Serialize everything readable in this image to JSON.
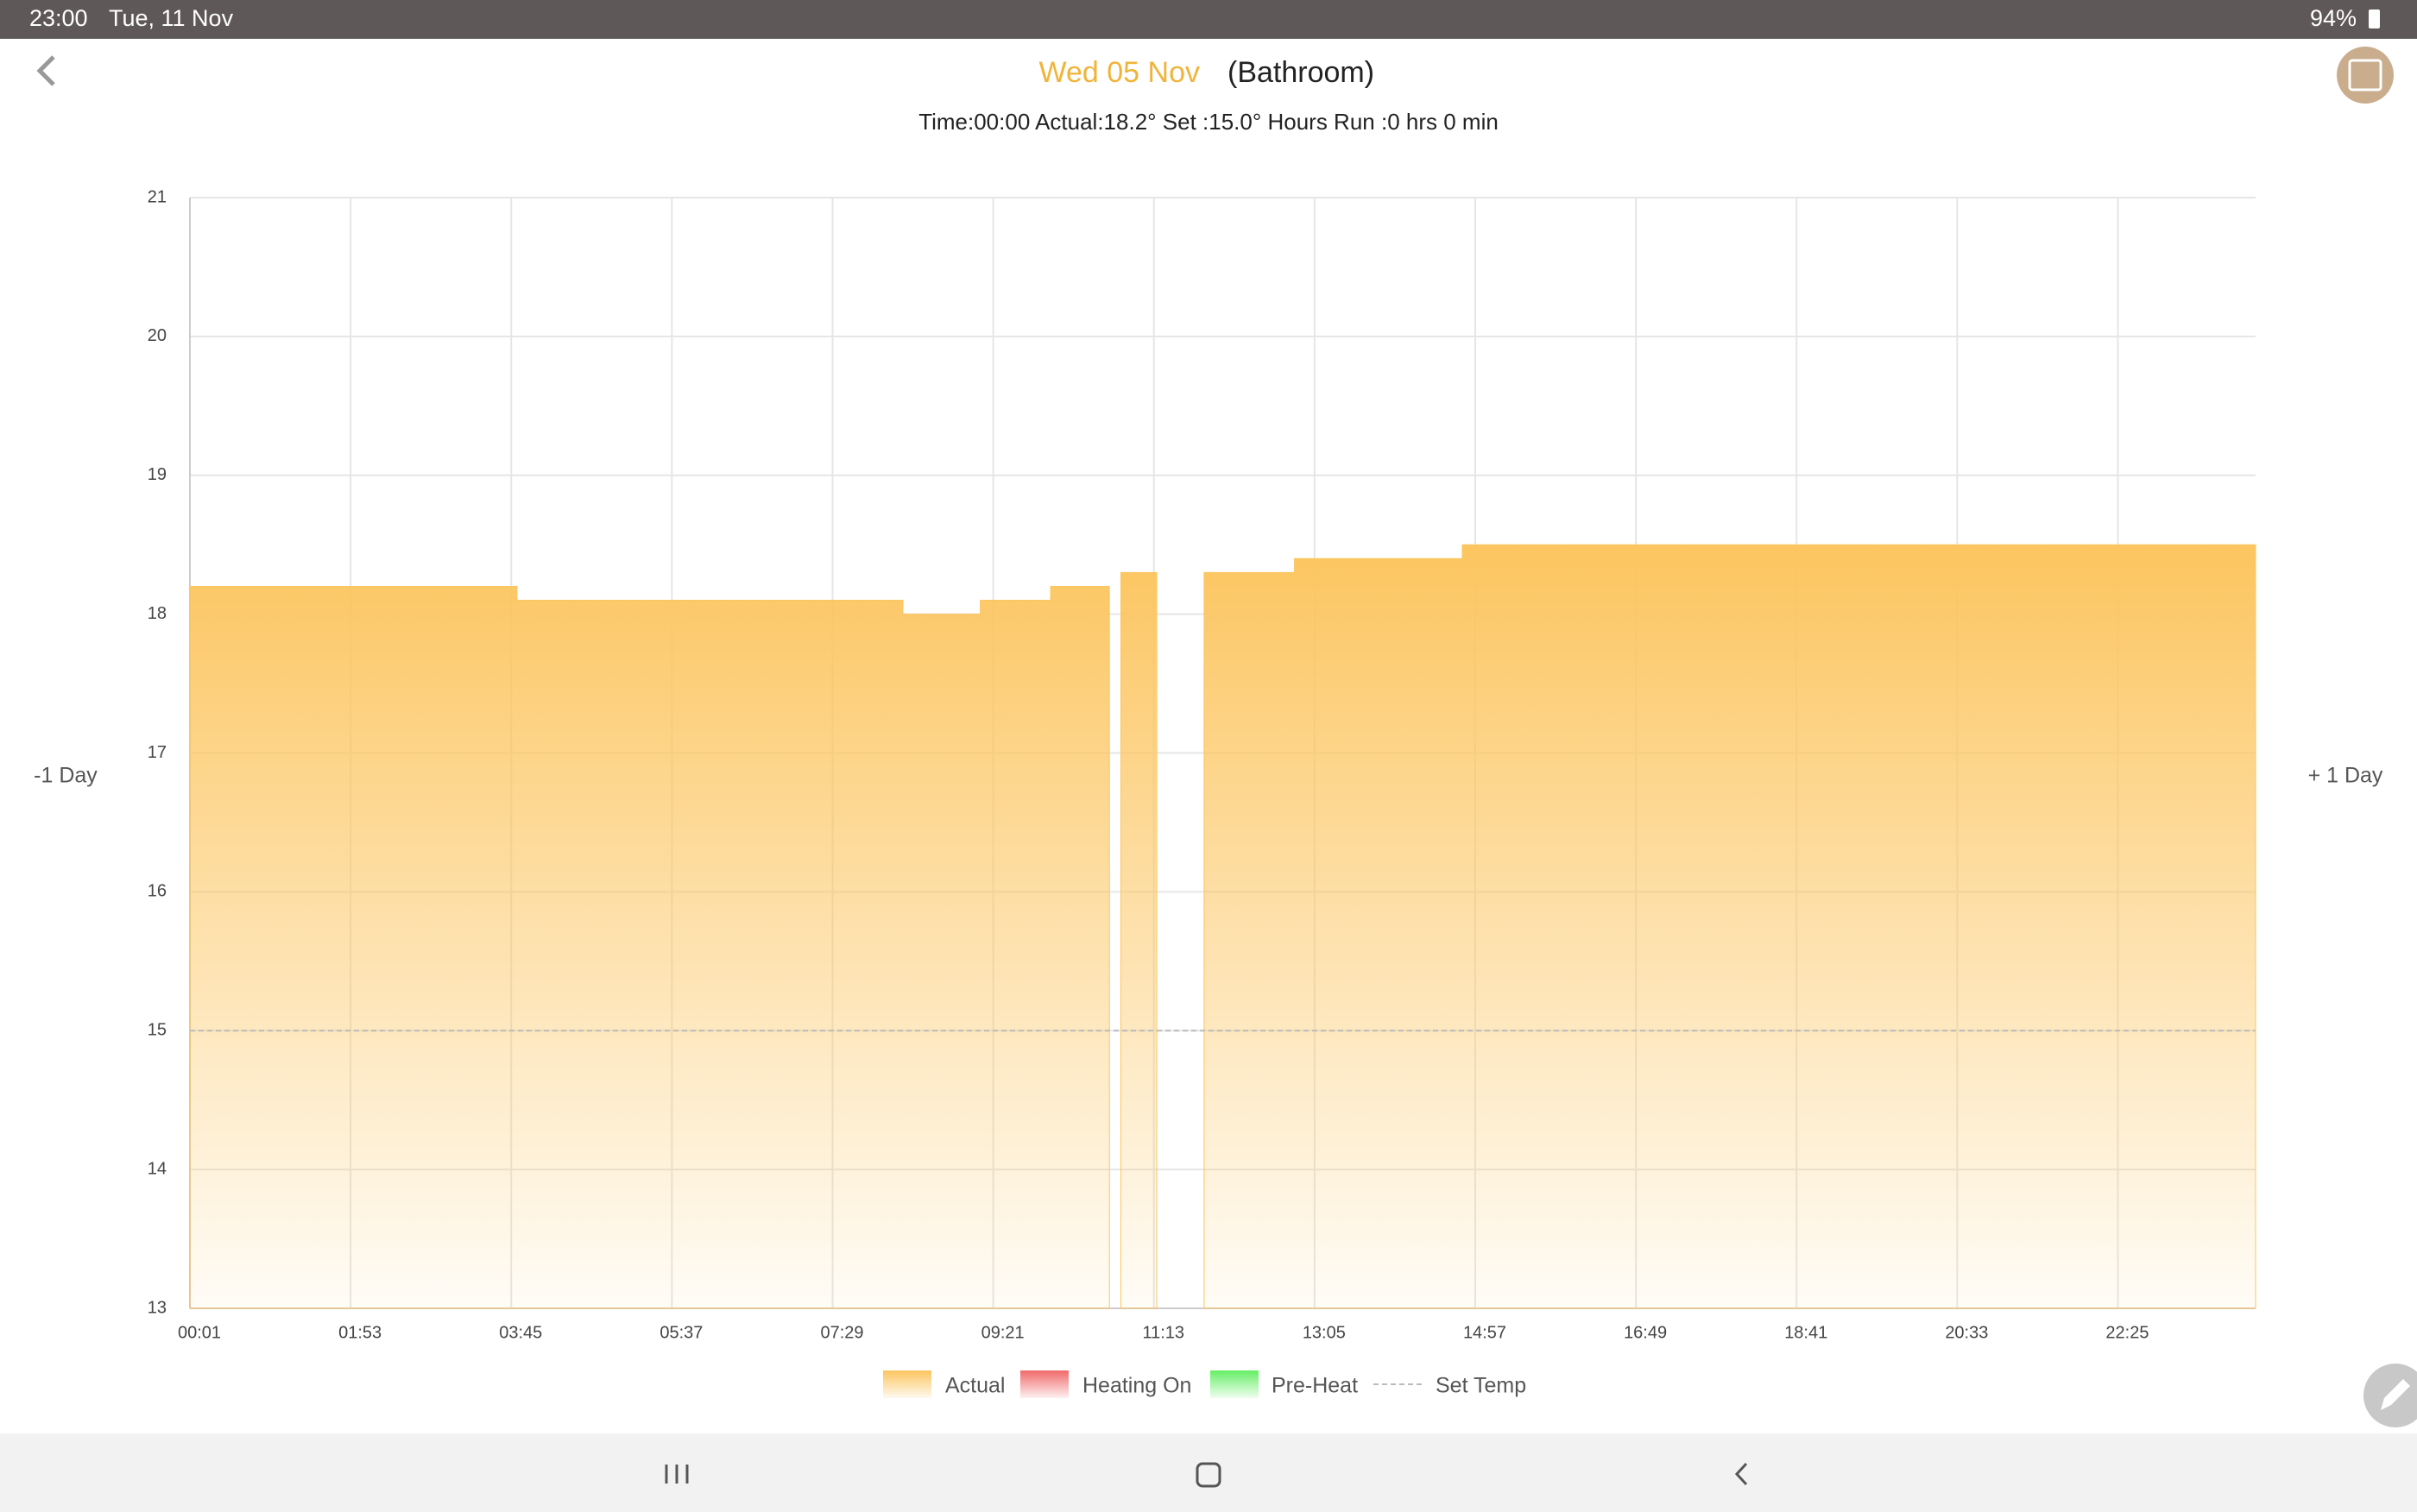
{
  "status_bar": {
    "time": "23:00",
    "date": "Tue, 11 Nov",
    "battery": "94%"
  },
  "header": {
    "date": "Wed 05 Nov",
    "room": "(Bathroom)",
    "info": "Time:00:00 Actual:18.2° Set :15.0° Hours Run :0 hrs 0 min"
  },
  "nav": {
    "prev": "-1 Day",
    "next": "+ 1 Day"
  },
  "chart_data": {
    "type": "area",
    "x": [
      1,
      229,
      229,
      498,
      498,
      552,
      552,
      601,
      601,
      642,
      646,
      650,
      675,
      690,
      708,
      771,
      771,
      888,
      888,
      1441
    ],
    "xlim": [
      1,
      1441
    ],
    "xticks": [
      {
        "value": 1,
        "label": "00:01"
      },
      {
        "value": 113,
        "label": "01:53"
      },
      {
        "value": 225,
        "label": "03:45"
      },
      {
        "value": 337,
        "label": "05:37"
      },
      {
        "value": 449,
        "label": "07:29"
      },
      {
        "value": 561,
        "label": "09:21"
      },
      {
        "value": 673,
        "label": "11:13"
      },
      {
        "value": 785,
        "label": "13:05"
      },
      {
        "value": 897,
        "label": "14:57"
      },
      {
        "value": 1009,
        "label": "16:49"
      },
      {
        "value": 1121,
        "label": "18:41"
      },
      {
        "value": 1233,
        "label": "20:33"
      },
      {
        "value": 1345,
        "label": "22:25"
      }
    ],
    "ylim": [
      13,
      21
    ],
    "yticks": [
      13,
      14,
      15,
      16,
      17,
      18,
      19,
      20,
      21
    ],
    "grid": true,
    "series": [
      {
        "name": "Actual",
        "color": "#fcc55f",
        "values": [
          18.2,
          18.2,
          18.1,
          18.1,
          18.0,
          18.0,
          18.1,
          18.1,
          18.2,
          18.2,
          null,
          18.3,
          18.3,
          null,
          18.3,
          18.3,
          18.4,
          18.4,
          18.5,
          18.5
        ]
      },
      {
        "name": "Heating On",
        "color": "#f06a6a"
      },
      {
        "name": "Pre-Heat",
        "color": "#66ee66"
      },
      {
        "name": "Set Temp",
        "color": "#bbbbbb",
        "x": [
          1,
          1441
        ],
        "values": [
          15,
          15
        ]
      }
    ]
  }
}
